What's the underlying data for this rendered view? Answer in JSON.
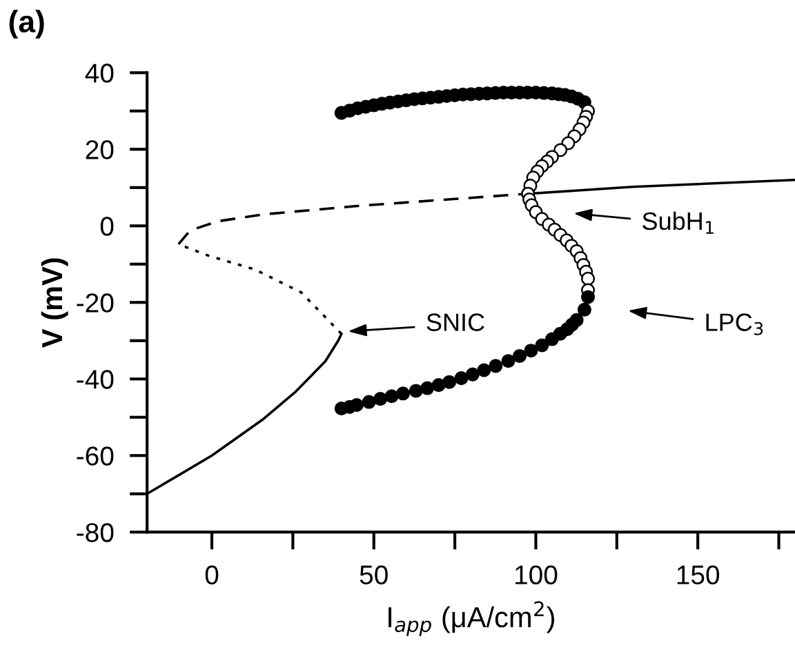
{
  "chart_data": {
    "type": "line",
    "title": "(a)",
    "xlabel": "I$_{app}$ (μA/cm$^{2}$)",
    "ylabel": "V (mV)",
    "xlim": [
      -20,
      180
    ],
    "ylim": [
      -80,
      40
    ],
    "xticks": [
      0,
      {
        "value": 25,
        "label": null
      },
      50,
      {
        "value": 75,
        "label": null
      },
      100,
      {
        "value": 125,
        "label": null
      },
      150,
      {
        "value": 175,
        "label": null
      }
    ],
    "yticks": [
      -80,
      {
        "value": -70,
        "label": null
      },
      -60,
      {
        "value": -50,
        "label": null
      },
      -40,
      {
        "value": -30,
        "label": null
      },
      -20,
      {
        "value": -10,
        "label": null
      },
      0,
      {
        "value": 10,
        "label": null
      },
      20,
      {
        "value": 30,
        "label": null
      },
      40
    ],
    "grid": false,
    "legend": false,
    "series": [
      {
        "line_style": "solid",
        "color": "#000000",
        "x": [
          -20,
          0,
          16,
          26,
          35,
          39,
          40
        ],
        "values": [
          -70,
          -60,
          -50.4,
          -43.2,
          -35.4,
          -30,
          -28.2
        ]
      },
      {
        "line_style": "dotted",
        "color": "#000000",
        "x": [
          40,
          27.6,
          13.3,
          -1,
          -10.3
        ],
        "values": [
          -28.2,
          -17.4,
          -11.4,
          -7.8,
          -4.8
        ]
      },
      {
        "line_style": "dashed",
        "color": "#000000",
        "x": [
          -10.3,
          -6.7,
          1.9,
          16,
          45,
          73,
          97.6
        ],
        "values": [
          -4.8,
          -1.2,
          1.2,
          3,
          5.2,
          6.9,
          8.4
        ]
      },
      {
        "line_style": "solid",
        "color": "#000000",
        "x": [
          97.6,
          130,
          180
        ],
        "values": [
          8.4,
          10.2,
          12
        ]
      },
      {
        "type": "scatter",
        "marker": "circle",
        "color": "#000000",
        "x": [
          40,
          42.5,
          45,
          47.5,
          50,
          52.5,
          55,
          57.5,
          60,
          62.5,
          65,
          67.5,
          70,
          72.5,
          75,
          77.5,
          80,
          82.5,
          85,
          87.5,
          90,
          92.5,
          95,
          97.5,
          100,
          102.5,
          105,
          107,
          109,
          111,
          113,
          115
        ],
        "values": [
          29.5,
          30.1,
          30.7,
          31.1,
          31.5,
          31.9,
          32.2,
          32.5,
          32.8,
          33.1,
          33.3,
          33.5,
          33.7,
          33.9,
          34.1,
          34.3,
          34.4,
          34.5,
          34.6,
          34.7,
          34.8,
          34.8,
          34.8,
          34.8,
          34.8,
          34.7,
          34.6,
          34.4,
          34.2,
          33.8,
          33.2,
          32.3
        ]
      },
      {
        "type": "scatter",
        "marker": "circle",
        "color": "#ffffff",
        "x": [
          116.1,
          115.5,
          114.7,
          113.5,
          111.9,
          110,
          107.6,
          105,
          103.5,
          101.9,
          100.5,
          99.2,
          98.3,
          97.6,
          98,
          98.7,
          100,
          101.9,
          104,
          105.8,
          107.6,
          109.5,
          111,
          112.6,
          113.8,
          114.7,
          115.5,
          116.1,
          116.1
        ],
        "values": [
          30,
          28.5,
          27,
          25.2,
          23.4,
          21.6,
          19.8,
          18,
          16.8,
          15.6,
          14.2,
          12.6,
          10.5,
          8.4,
          6.9,
          5.4,
          3.6,
          1.8,
          0.3,
          -1,
          -2.4,
          -3.8,
          -5.2,
          -6.6,
          -8.4,
          -10.2,
          -12,
          -13.8,
          -16.8
        ]
      },
      {
        "type": "scatter",
        "marker": "circle",
        "color": "#000000",
        "x": [
          116.1,
          115,
          112.6,
          111.2,
          109.7,
          107.5,
          105,
          101.9,
          98.5,
          95,
          91.5,
          87.6,
          84,
          80.5,
          77,
          73.3,
          70,
          66.5,
          63,
          59,
          55.5,
          52,
          48.5,
          44.7,
          42.5,
          40
        ],
        "values": [
          -18.6,
          -21.9,
          -24.6,
          -25.8,
          -27,
          -28.2,
          -29.6,
          -31.2,
          -32.6,
          -34,
          -35.3,
          -36.6,
          -37.7,
          -38.8,
          -39.8,
          -40.8,
          -41.6,
          -42.4,
          -43.1,
          -43.8,
          -44.5,
          -45.2,
          -46,
          -46.8,
          -47.3,
          -47.7
        ]
      }
    ],
    "annotations": [
      "SNIC",
      "SubH$_{1}$",
      "LPC$_{3}$"
    ]
  }
}
